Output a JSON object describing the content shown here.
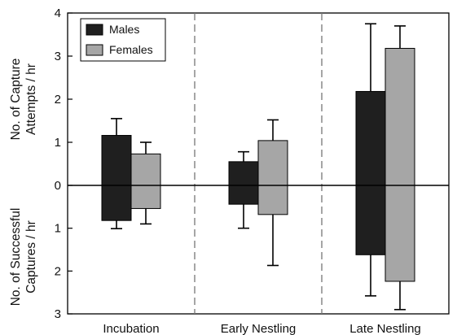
{
  "chart_data": {
    "type": "bar",
    "title": "",
    "xlabel": "",
    "ylabel_upper": [
      "No. of Capture",
      "Attempts / hr"
    ],
    "ylabel_lower": [
      "No. of Successful",
      "Captures / hr"
    ],
    "upper_ylim": [
      0,
      4
    ],
    "lower_ylim": [
      0,
      3
    ],
    "upper_ticks": [
      "4",
      "3",
      "2",
      "1",
      "0"
    ],
    "lower_ticks": [
      "1",
      "2",
      "3"
    ],
    "categories": [
      "Incubation",
      "Early Nestling",
      "Late Nestling"
    ],
    "legend_position": "top-left",
    "series": [
      {
        "name": "Males",
        "color": "#1f1f1f",
        "attempts": [
          1.16,
          0.55,
          2.18
        ],
        "attempts_err_top": [
          1.55,
          0.78,
          3.75
        ],
        "captures": [
          0.82,
          0.44,
          1.62
        ],
        "captures_err_bottom": [
          1.01,
          1.0,
          2.58
        ]
      },
      {
        "name": "Females",
        "color": "#a6a6a6",
        "attempts": [
          0.73,
          1.04,
          3.18
        ],
        "attempts_err_top": [
          1.0,
          1.52,
          3.7
        ],
        "captures": [
          0.54,
          0.68,
          2.24
        ],
        "captures_err_bottom": [
          0.9,
          1.87,
          2.9
        ]
      }
    ],
    "group_dividers": "dashed",
    "zero_line": true
  }
}
